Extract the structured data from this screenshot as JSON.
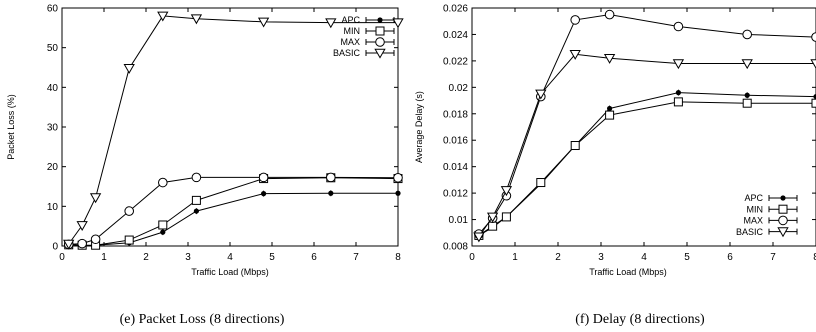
{
  "chart_data": [
    {
      "type": "line",
      "caption": "(e) Packet Loss (8 directions)",
      "xlabel": "Traffic Load (Mbps)",
      "ylabel": "Packet Loss (%)",
      "xlim": [
        0,
        8
      ],
      "ylim": [
        0,
        60
      ],
      "xticks": [
        0,
        1,
        2,
        3,
        4,
        5,
        6,
        7,
        8
      ],
      "yticks": [
        0,
        10,
        20,
        30,
        40,
        50,
        60
      ],
      "grid": false,
      "legend_position": "top-right",
      "x": [
        0.16,
        0.48,
        0.8,
        1.6,
        2.4,
        3.2,
        4.8,
        6.4,
        8.0
      ],
      "series": [
        {
          "name": "APC",
          "marker": "filled-circle",
          "values": [
            0,
            0,
            0.2,
            0.8,
            3.5,
            8.8,
            13.2,
            13.3,
            13.3
          ]
        },
        {
          "name": "MIN",
          "marker": "square",
          "values": [
            0.3,
            0.2,
            0.2,
            1.5,
            5.3,
            11.5,
            17.0,
            17.2,
            17.0
          ]
        },
        {
          "name": "MAX",
          "marker": "circle",
          "values": [
            0.4,
            0.6,
            1.7,
            8.8,
            16.0,
            17.3,
            17.3,
            17.3,
            17.2
          ]
        },
        {
          "name": "BASIC",
          "marker": "triangle-down",
          "values": [
            0.5,
            5.2,
            12.2,
            44.8,
            58.0,
            57.3,
            56.5,
            56.3,
            56.3
          ]
        }
      ]
    },
    {
      "type": "line",
      "caption": "(f) Delay (8 directions)",
      "xlabel": "Traffic Load (Mbps)",
      "ylabel": "Average Delay (s)",
      "xlim": [
        0,
        8
      ],
      "ylim": [
        0.008,
        0.026
      ],
      "xticks": [
        0,
        1,
        2,
        3,
        4,
        5,
        6,
        7,
        8
      ],
      "yticks": [
        0.008,
        0.01,
        0.012,
        0.014,
        0.016,
        0.018,
        0.02,
        0.022,
        0.024,
        0.026
      ],
      "ytick_labels": [
        "0.008",
        "0.01",
        "0.012",
        "0.014",
        "0.016",
        "0.018",
        "0.02",
        "0.022",
        "0.024",
        "0.026"
      ],
      "grid": false,
      "legend_position": "bottom-right",
      "x": [
        0.16,
        0.48,
        0.8,
        1.6,
        2.4,
        3.2,
        4.8,
        6.4,
        8.0
      ],
      "series": [
        {
          "name": "APC",
          "marker": "filled-circle",
          "values": [
            0.0088,
            0.0094,
            0.0102,
            0.0127,
            0.0156,
            0.0184,
            0.0196,
            0.0194,
            0.0193
          ]
        },
        {
          "name": "MIN",
          "marker": "square",
          "values": [
            0.0088,
            0.0095,
            0.0102,
            0.0128,
            0.0156,
            0.0179,
            0.0189,
            0.0188,
            0.0188
          ]
        },
        {
          "name": "MAX",
          "marker": "circle",
          "values": [
            0.0089,
            0.0101,
            0.0118,
            0.0193,
            0.0251,
            0.0255,
            0.0246,
            0.024,
            0.0238
          ]
        },
        {
          "name": "BASIC",
          "marker": "triangle-down",
          "values": [
            0.0087,
            0.0102,
            0.0122,
            0.0195,
            0.0225,
            0.0222,
            0.0218,
            0.0218,
            0.0218
          ]
        }
      ]
    }
  ]
}
